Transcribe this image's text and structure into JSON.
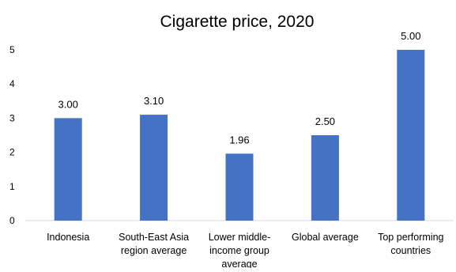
{
  "chart_data": {
    "type": "bar",
    "title": "Cigarette price, 2020",
    "categories": [
      [
        "Indonesia"
      ],
      [
        "South-East Asia",
        "region average"
      ],
      [
        "Lower middle-",
        "income group",
        "average"
      ],
      [
        "Global average"
      ],
      [
        "Top performing",
        "countries"
      ]
    ],
    "values": [
      3.0,
      3.1,
      1.96,
      2.5,
      5.0
    ],
    "value_labels": [
      "3.00",
      "3.10",
      "1.96",
      "2.50",
      "5.00"
    ],
    "y_ticks": [
      0,
      1,
      2,
      3,
      4,
      5
    ],
    "ylim": [
      0,
      5
    ],
    "grid": false,
    "legend": "none",
    "colors": {
      "bar": "#4472C4",
      "axis": "#d9d9d9",
      "text": "#000000"
    }
  }
}
